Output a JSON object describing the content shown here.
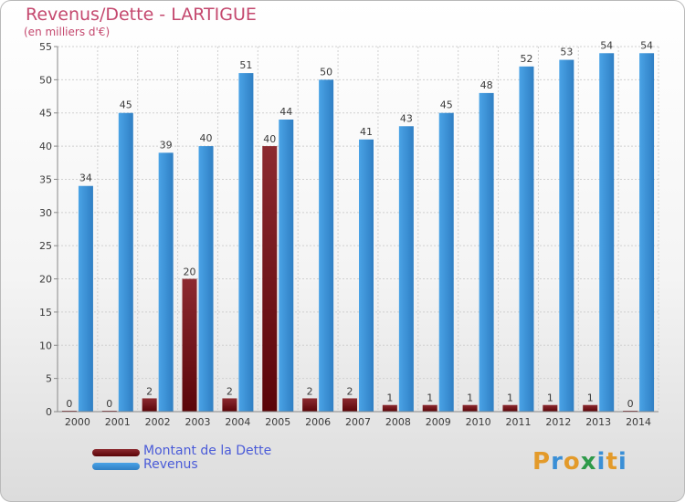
{
  "colors": {
    "debt": "#7a0f14",
    "revenue": "#3a8fd6",
    "title": "#c4486e",
    "legend_text": "#4a5bd8"
  },
  "logo": {
    "text": "Proxiti",
    "colors": [
      "#e39a2a",
      "#3a8fd6",
      "#e39a2a",
      "#2e9a4a",
      "#3a8fd6",
      "#e39a2a",
      "#3a8fd6"
    ]
  },
  "chart_data": {
    "type": "bar",
    "title": "Revenus/Dette - LARTIGUE",
    "subtitle": "(en milliers d'€)",
    "categories": [
      "2000",
      "2001",
      "2002",
      "2003",
      "2004",
      "2005",
      "2006",
      "2007",
      "2008",
      "2009",
      "2010",
      "2011",
      "2012",
      "2013",
      "2014"
    ],
    "series": [
      {
        "name": "Montant de la Dette",
        "values": [
          0,
          0,
          2,
          20,
          2,
          40,
          2,
          2,
          1,
          1,
          1,
          1,
          1,
          1,
          0
        ]
      },
      {
        "name": "Revenus",
        "values": [
          34,
          45,
          39,
          40,
          51,
          44,
          50,
          41,
          43,
          45,
          48,
          52,
          53,
          54,
          54
        ]
      }
    ],
    "ylim": [
      0,
      55
    ],
    "yticks": [
      0,
      5,
      10,
      15,
      20,
      25,
      30,
      35,
      40,
      45,
      50,
      55
    ],
    "grid": true,
    "legend_position": "bottom-left"
  }
}
